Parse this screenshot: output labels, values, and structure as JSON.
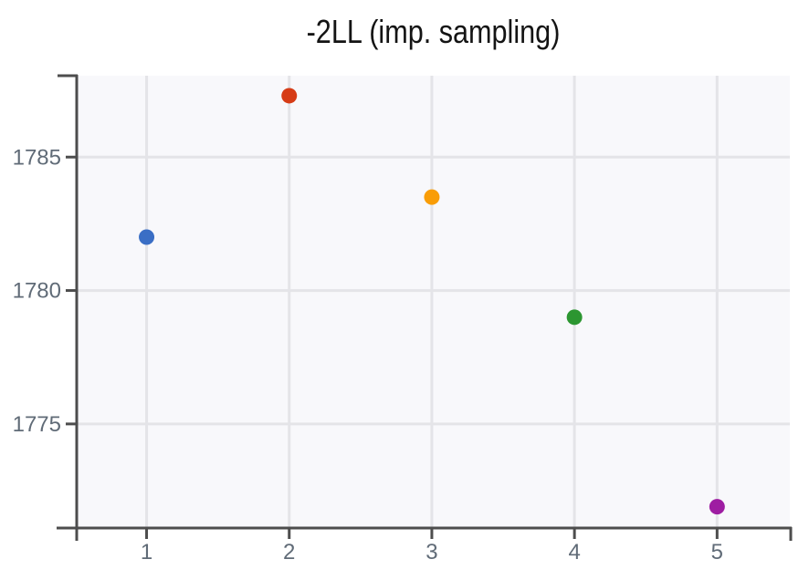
{
  "chart_data": {
    "type": "scatter",
    "title": "-2LL (imp. sampling)",
    "x": [
      1,
      2,
      3,
      4,
      5
    ],
    "y": [
      1782.0,
      1787.3,
      1783.5,
      1779.0,
      1771.9
    ],
    "point_colors": [
      "#3a6ec5",
      "#d63c16",
      "#f99d07",
      "#2c9631",
      "#9e1da2"
    ],
    "x_ticks": [
      1,
      2,
      3,
      4,
      5
    ],
    "y_ticks": [
      1775,
      1780,
      1785
    ],
    "xlim": [
      0.51,
      5.51
    ],
    "ylim": [
      1771.1,
      1788.05
    ],
    "xlabel": "",
    "ylabel": "",
    "grid": true,
    "legend": "none"
  },
  "style": {
    "outer_bg": "#ffffff",
    "plot_bg": "#f8f8fb",
    "grid_color": "#e4e4e8",
    "axis_color": "#4d4d4d",
    "tick_label_color": "#606b77",
    "title_color": "#141414"
  }
}
